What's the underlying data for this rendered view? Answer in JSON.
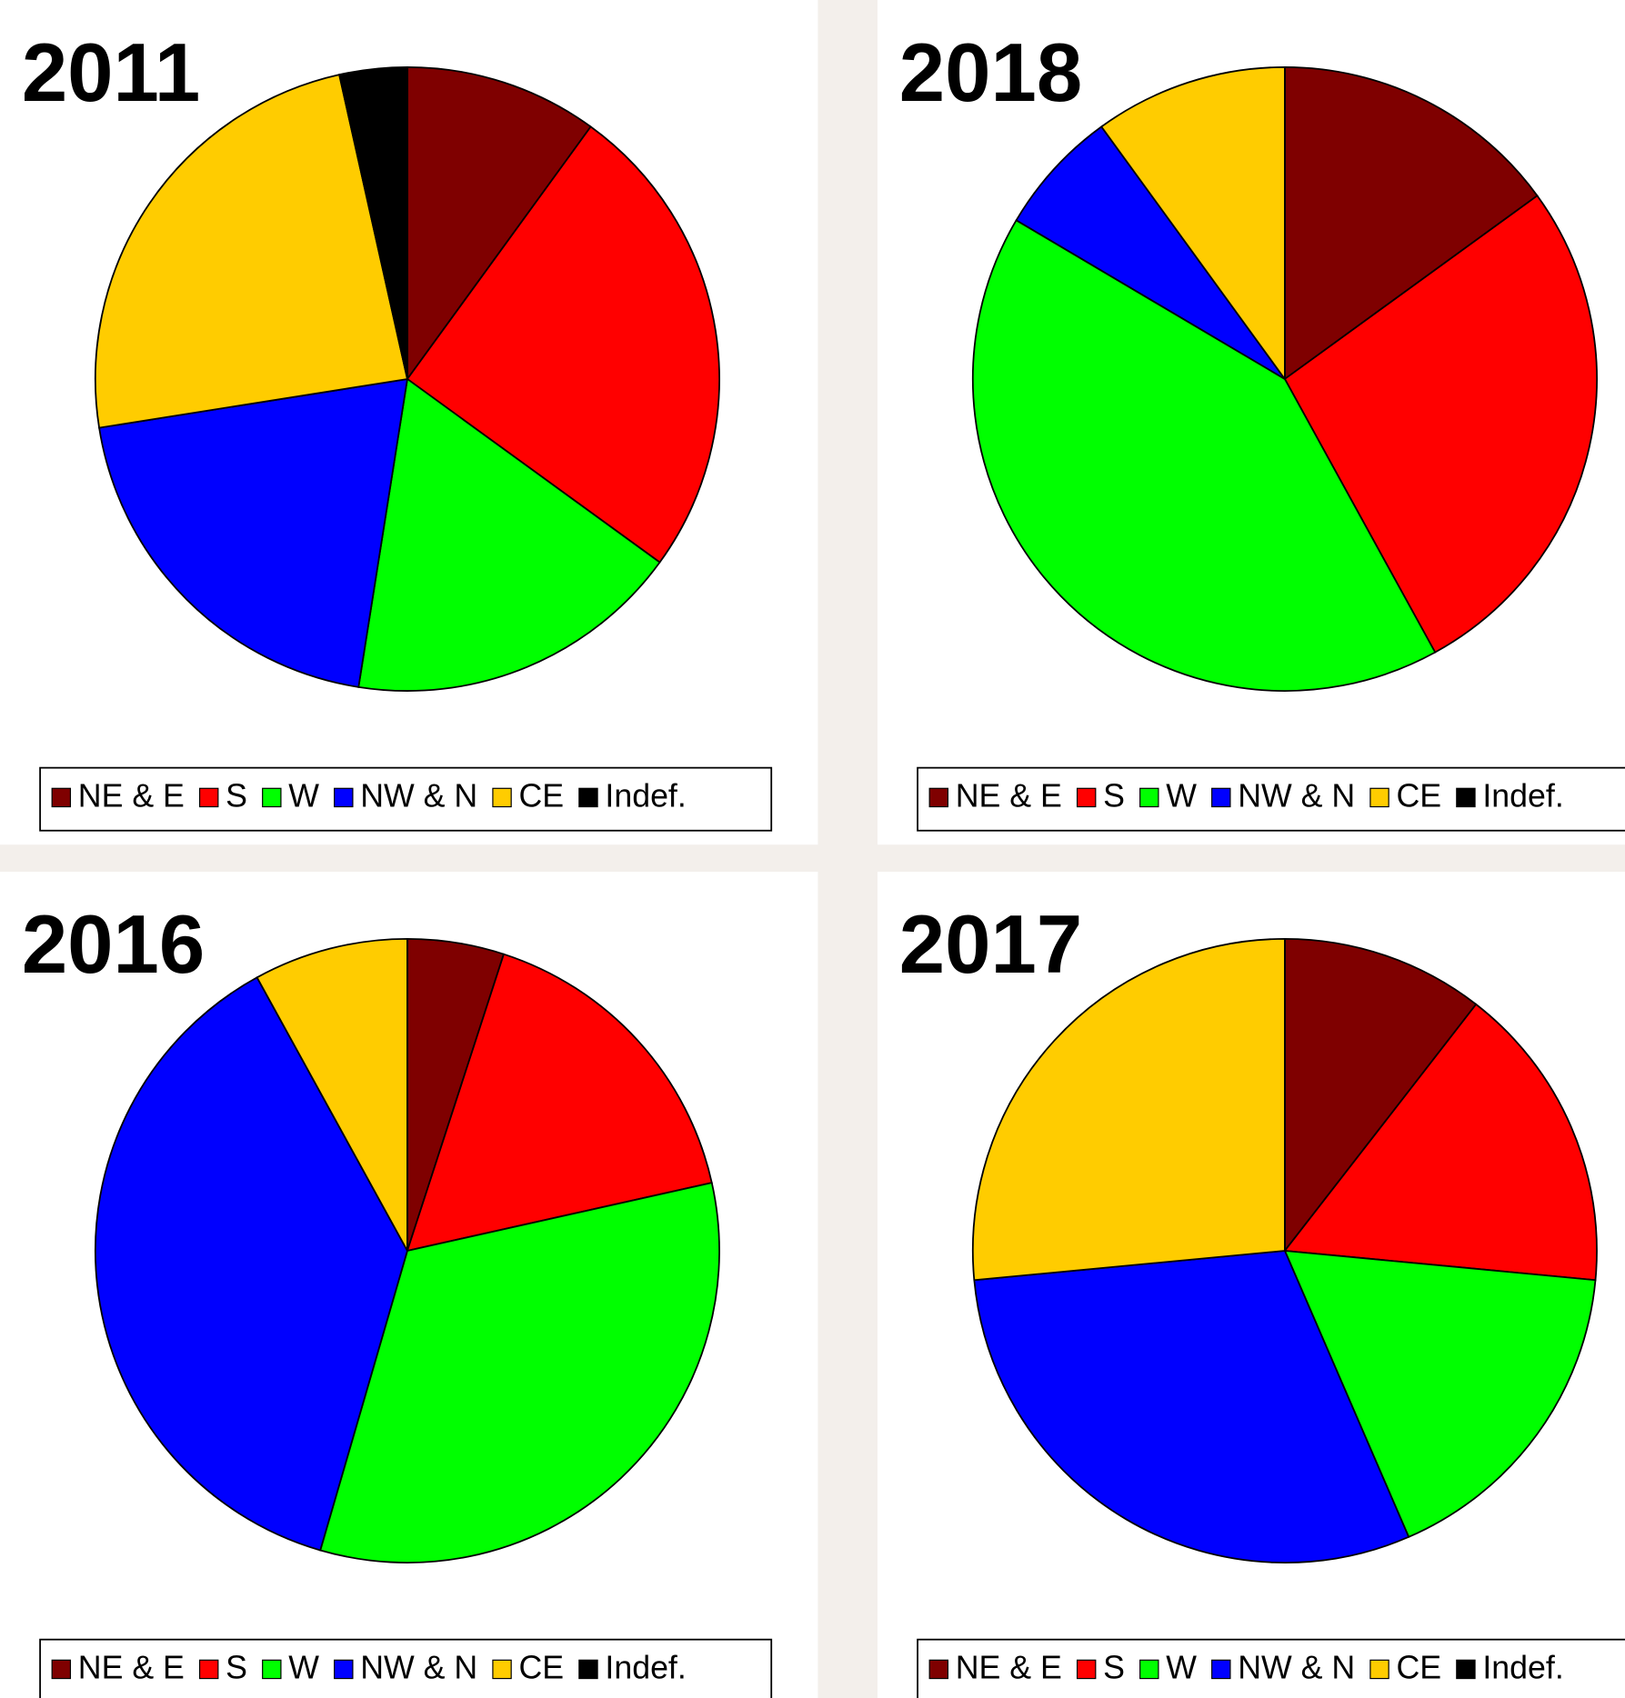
{
  "chart_data": [
    {
      "type": "pie",
      "title": "2011",
      "categories": [
        "NE & E",
        "S",
        "W",
        "NW & N",
        "CE",
        "Indef."
      ],
      "values": [
        10,
        25,
        17.5,
        20,
        24,
        3.5
      ],
      "colors": [
        "#7f0000",
        "#ff0000",
        "#00ff00",
        "#0000ff",
        "#ffcc00",
        "#000000"
      ]
    },
    {
      "type": "pie",
      "title": "2018",
      "categories": [
        "NE & E",
        "S",
        "W",
        "NW & N",
        "CE",
        "Indef."
      ],
      "values": [
        15,
        27,
        41.5,
        6.5,
        10,
        0
      ],
      "colors": [
        "#7f0000",
        "#ff0000",
        "#00ff00",
        "#0000ff",
        "#ffcc00",
        "#000000"
      ]
    },
    {
      "type": "pie",
      "title": "2016",
      "categories": [
        "NE & E",
        "S",
        "W",
        "NW & N",
        "CE",
        "Indef."
      ],
      "values": [
        5,
        16.5,
        33,
        37.5,
        8,
        0
      ],
      "colors": [
        "#7f0000",
        "#ff0000",
        "#00ff00",
        "#0000ff",
        "#ffcc00",
        "#000000"
      ]
    },
    {
      "type": "pie",
      "title": "2017",
      "categories": [
        "NE & E",
        "S",
        "W",
        "NW & N",
        "CE",
        "Indef."
      ],
      "values": [
        10.5,
        16,
        17,
        30,
        26.5,
        0
      ],
      "colors": [
        "#7f0000",
        "#ff0000",
        "#00ff00",
        "#0000ff",
        "#ffcc00",
        "#000000"
      ]
    }
  ]
}
